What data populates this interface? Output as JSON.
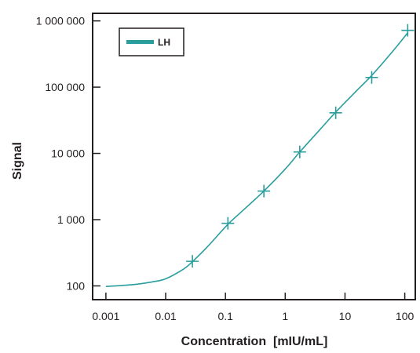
{
  "chart_data": {
    "type": "scatter",
    "title": "",
    "xlabel": "Concentration  [mIU/mL]",
    "ylabel": "Signal",
    "xscale": "log",
    "yscale": "log",
    "xlim": [
      0.0006,
      150
    ],
    "ylim": [
      62,
      1300000
    ],
    "xticks": [
      0.001,
      0.01,
      0.1,
      1,
      10,
      100
    ],
    "xtick_labels": [
      "0.001",
      "0.01",
      "0.1",
      "1",
      "10",
      "100"
    ],
    "yticks": [
      100,
      1000,
      10000,
      100000,
      1000000
    ],
    "ytick_labels": [
      "100",
      "1 000",
      "10 000",
      "100 000",
      "1 000 000"
    ],
    "grid": false,
    "legend_position": "top-left",
    "colors": {
      "series": "#2a9d9d",
      "axis": "#231f20"
    },
    "series": [
      {
        "name": "LH",
        "marker": "plus",
        "points": [
          {
            "x": 0.028,
            "y": 235
          },
          {
            "x": 0.11,
            "y": 880
          },
          {
            "x": 0.44,
            "y": 2700
          },
          {
            "x": 1.75,
            "y": 10500
          },
          {
            "x": 7.0,
            "y": 41000
          },
          {
            "x": 28,
            "y": 140000
          },
          {
            "x": 112,
            "y": 720000
          }
        ],
        "fit_curve": [
          {
            "x": 0.001,
            "y": 98
          },
          {
            "x": 0.003,
            "y": 105
          },
          {
            "x": 0.006,
            "y": 115
          },
          {
            "x": 0.01,
            "y": 128
          },
          {
            "x": 0.02,
            "y": 180
          },
          {
            "x": 0.028,
            "y": 232
          },
          {
            "x": 0.05,
            "y": 390
          },
          {
            "x": 0.11,
            "y": 850
          },
          {
            "x": 0.2,
            "y": 1400
          },
          {
            "x": 0.44,
            "y": 2700
          },
          {
            "x": 1,
            "y": 5800
          },
          {
            "x": 1.75,
            "y": 10500
          },
          {
            "x": 4,
            "y": 24000
          },
          {
            "x": 7,
            "y": 42000
          },
          {
            "x": 15,
            "y": 85000
          },
          {
            "x": 28,
            "y": 150000
          },
          {
            "x": 60,
            "y": 330000
          },
          {
            "x": 112,
            "y": 660000
          }
        ]
      }
    ]
  }
}
